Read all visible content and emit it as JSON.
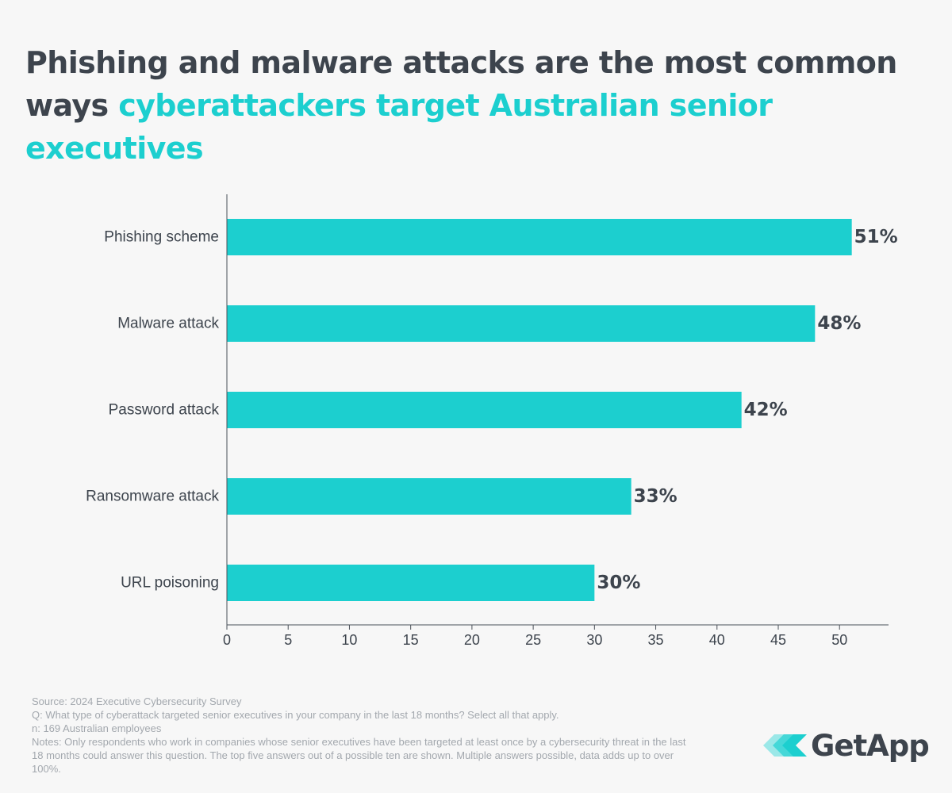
{
  "title": {
    "part1": "Phishing and malware attacks are the most common ways ",
    "part2": "cyberattackers target Australian senior executives"
  },
  "chart_data": {
    "type": "bar",
    "orientation": "horizontal",
    "categories": [
      "Phishing scheme",
      "Malware attack",
      "Password attack",
      "Ransomware attack",
      "URL poisoning"
    ],
    "values": [
      51,
      48,
      42,
      33,
      30
    ],
    "value_labels": [
      "51%",
      "48%",
      "42%",
      "33%",
      "30%"
    ],
    "xlim": [
      0,
      54
    ],
    "xticks": [
      0,
      5,
      10,
      15,
      20,
      25,
      30,
      35,
      40,
      45,
      50
    ],
    "xlabel": "",
    "ylabel": "",
    "grid": false,
    "legend": "none",
    "bar_color": "#1ccfcf"
  },
  "footnotes": {
    "source": "Source: 2024 Executive Cybersecurity Survey",
    "question": "Q: What type of cyberattack targeted senior executives in your company in the last 18 months? Select all that apply.",
    "sample": "n: 169 Australian employees",
    "notes": "Notes: Only respondents who work in companies whose senior executives have been targeted at least once by a cybersecurity threat in the last 18 months could answer this question. The top five answers out of a possible ten are shown. Multiple answers possible, data adds up to over 100%."
  },
  "logo": {
    "text": "GetApp",
    "icon": "getapp-logo-icon"
  },
  "colors": {
    "accent": "#1ccfcf",
    "text": "#3d444d",
    "muted": "#a3a8ae",
    "background": "#f7f7f7"
  }
}
